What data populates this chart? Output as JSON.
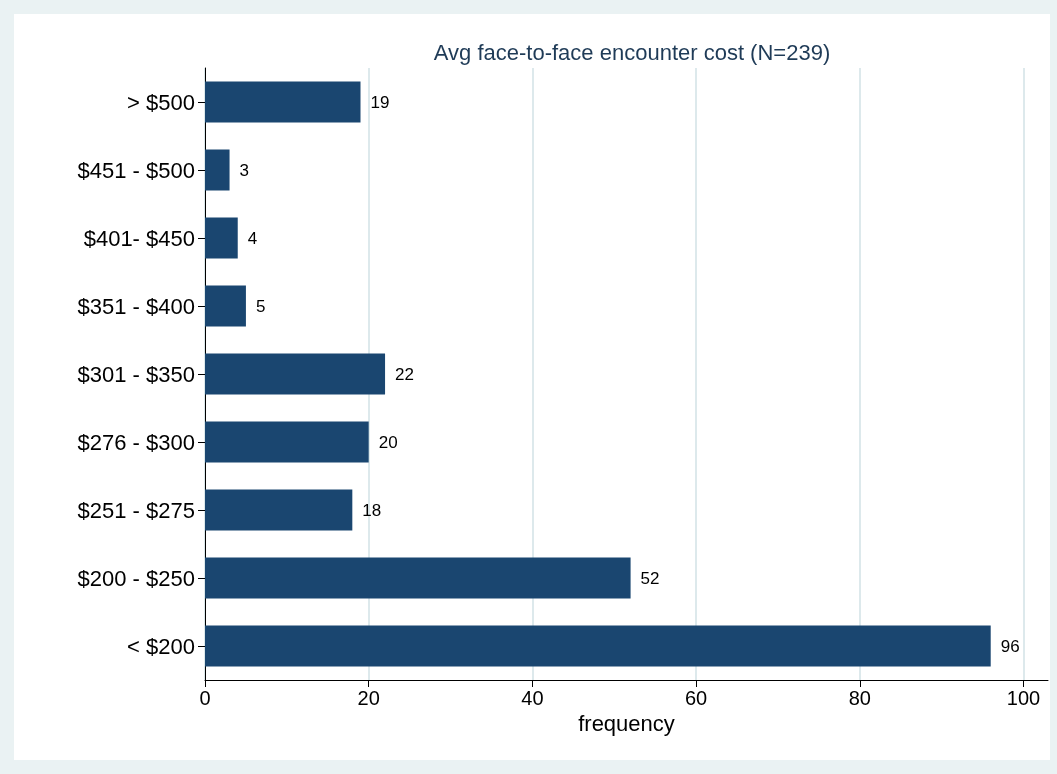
{
  "chart_data": {
    "type": "bar",
    "orientation": "horizontal",
    "title": "Avg face-to-face encounter cost (N=239)",
    "xlabel": "frequency",
    "categories": [
      "> $500",
      "$451 - $500",
      "$401- $450",
      "$351 - $400",
      "$301 - $350",
      "$276 - $300",
      "$251 - $275",
      "$200 - $250",
      "< $200"
    ],
    "values": [
      19,
      3,
      4,
      5,
      22,
      20,
      18,
      52,
      96
    ],
    "color": "#1a4670",
    "xlim": [
      0,
      103
    ],
    "xticks": [
      0,
      20,
      40,
      60,
      80,
      100
    ],
    "grid": "x",
    "data_labels": true
  }
}
